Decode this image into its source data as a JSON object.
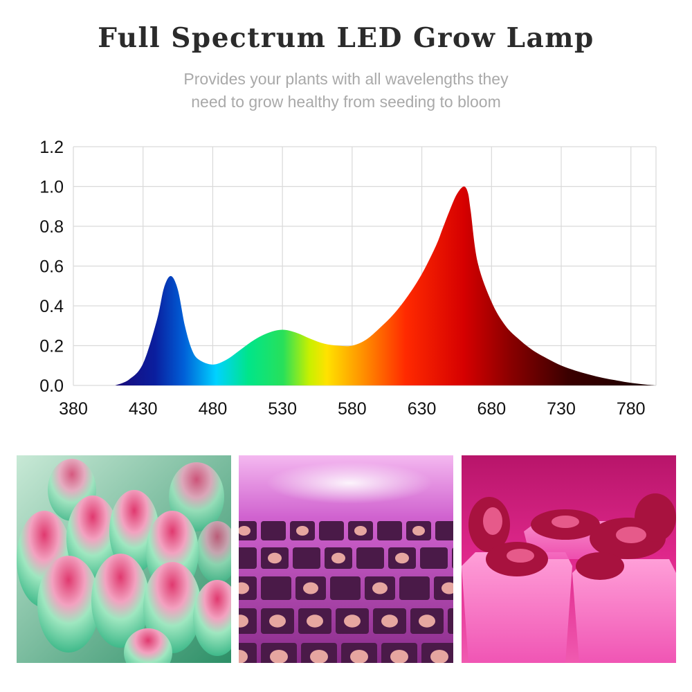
{
  "header": {
    "title": "Full Spectrum LED Grow Lamp",
    "subtitle_line1": "Provides your plants with all wavelengths they",
    "subtitle_line2": "need to grow healthy from seeding to bloom"
  },
  "chart_data": {
    "type": "area",
    "x": [
      410,
      420,
      430,
      440,
      445,
      450,
      455,
      460,
      465,
      470,
      480,
      490,
      500,
      510,
      520,
      530,
      540,
      550,
      560,
      570,
      580,
      590,
      600,
      610,
      620,
      630,
      640,
      645,
      650,
      655,
      660,
      663,
      665,
      670,
      680,
      690,
      700,
      710,
      720,
      730,
      740,
      750,
      760,
      770,
      780,
      790,
      798
    ],
    "y": [
      0.0,
      0.03,
      0.11,
      0.33,
      0.49,
      0.55,
      0.48,
      0.3,
      0.18,
      0.13,
      0.105,
      0.13,
      0.18,
      0.23,
      0.265,
      0.28,
      0.265,
      0.235,
      0.21,
      0.2,
      0.2,
      0.23,
      0.29,
      0.36,
      0.45,
      0.56,
      0.7,
      0.79,
      0.88,
      0.96,
      1.0,
      0.97,
      0.88,
      0.62,
      0.42,
      0.3,
      0.23,
      0.175,
      0.135,
      0.1,
      0.075,
      0.055,
      0.038,
      0.025,
      0.013,
      0.005,
      0.0
    ],
    "x_ticks": [
      "380",
      "430",
      "480",
      "530",
      "580",
      "630",
      "680",
      "730",
      "780"
    ],
    "y_ticks": [
      "0.0",
      "0.2",
      "0.4",
      "0.6",
      "0.8",
      "1.0",
      "1.2"
    ],
    "xlim": [
      380,
      798
    ],
    "ylim": [
      0,
      1.2
    ],
    "grid": true,
    "fill": "wavelength-colored spectrum gradient"
  },
  "photos": [
    {
      "name": "succulent-closeup-photo",
      "tint": "#7fdcb0"
    },
    {
      "name": "seedling-trays-photo",
      "tint": "#c84fc4"
    },
    {
      "name": "potted-succulents-photo",
      "tint": "#e2298c"
    }
  ]
}
